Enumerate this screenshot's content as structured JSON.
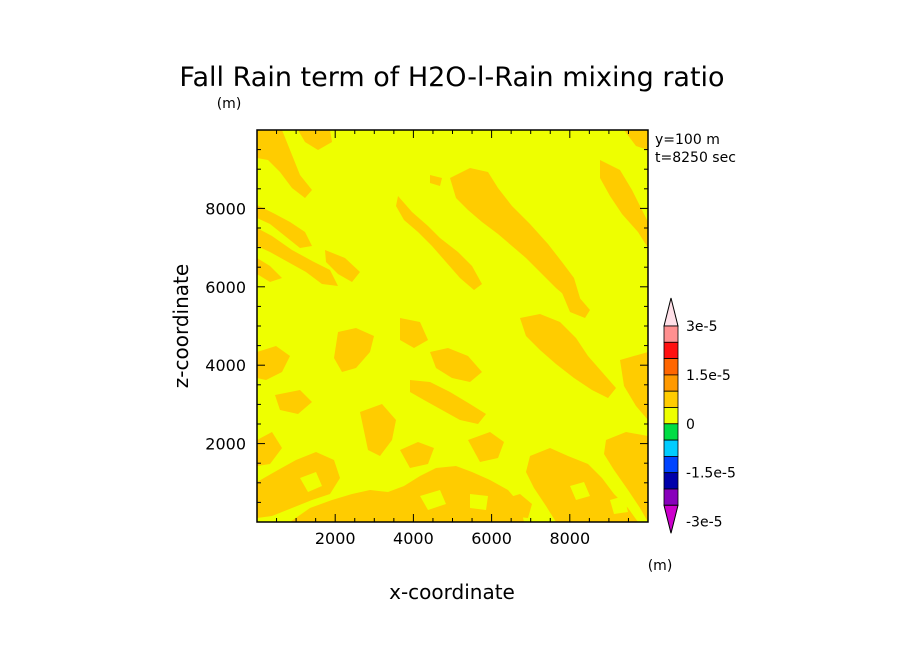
{
  "chart_data": {
    "type": "heatmap",
    "title": "Fall Rain term of H2O-l-Rain mixing ratio",
    "unit_label_top": "(m)",
    "unit_label_colorbar": "(m)",
    "xlabel": "x-coordinate",
    "ylabel": "z-coordinate",
    "xlim": [
      0,
      10000
    ],
    "ylim": [
      0,
      10000
    ],
    "xticks": [
      2000,
      4000,
      6000,
      8000
    ],
    "yticks": [
      2000,
      4000,
      6000,
      8000
    ],
    "annotations": [
      "y=100 m",
      "t=8250 sec"
    ],
    "background_color": "#ffff00",
    "field_base_color": "#eeff00",
    "field_positive_color": "#ffcc00",
    "colorbar": {
      "labels": [
        "3e-5",
        "1.5e-5",
        "0",
        "-1.5e-5",
        "-3e-5"
      ],
      "label_values": [
        3e-05,
        1.5e-05,
        0,
        -1.5e-05,
        -3e-05
      ],
      "levels_top_to_bottom": [
        {
          "color": "#ffe0e8",
          "arrow": true
        },
        {
          "color": "#ff9090"
        },
        {
          "color": "#ff1010"
        },
        {
          "color": "#ff6600"
        },
        {
          "color": "#ff9900"
        },
        {
          "color": "#ffcc00"
        },
        {
          "color": "#eeff00"
        },
        {
          "color": "#00dd44"
        },
        {
          "color": "#00ccff"
        },
        {
          "color": "#0044ff"
        },
        {
          "color": "#0000aa"
        },
        {
          "color": "#8800bb"
        },
        {
          "color": "#cc00cc",
          "arrow": true
        }
      ]
    },
    "grid": false
  }
}
